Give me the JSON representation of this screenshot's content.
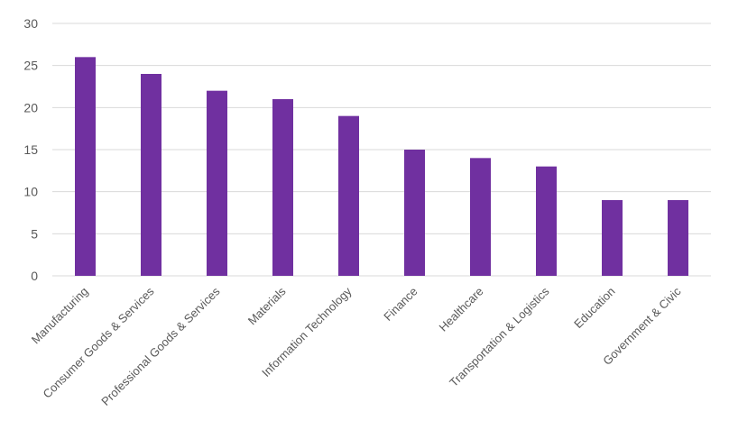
{
  "chart_data": {
    "type": "bar",
    "title": "",
    "xlabel": "",
    "ylabel": "",
    "categories": [
      "Manufacturing",
      "Consumer Goods & Services",
      "Professional Goods & Services",
      "Materials",
      "Information Technology",
      "Finance",
      "Healthcare",
      "Transportation & Logistics",
      "Education",
      "Government & Civic"
    ],
    "values": [
      26,
      24,
      22,
      21,
      19,
      15,
      14,
      13,
      9,
      9
    ],
    "ylim": [
      0,
      30
    ],
    "yticks": [
      "0",
      "5",
      "10",
      "15",
      "20",
      "25",
      "30"
    ],
    "grid": true,
    "legend": "none",
    "bar_color": "#7030A0",
    "grid_color": "#D9D9D9"
  }
}
